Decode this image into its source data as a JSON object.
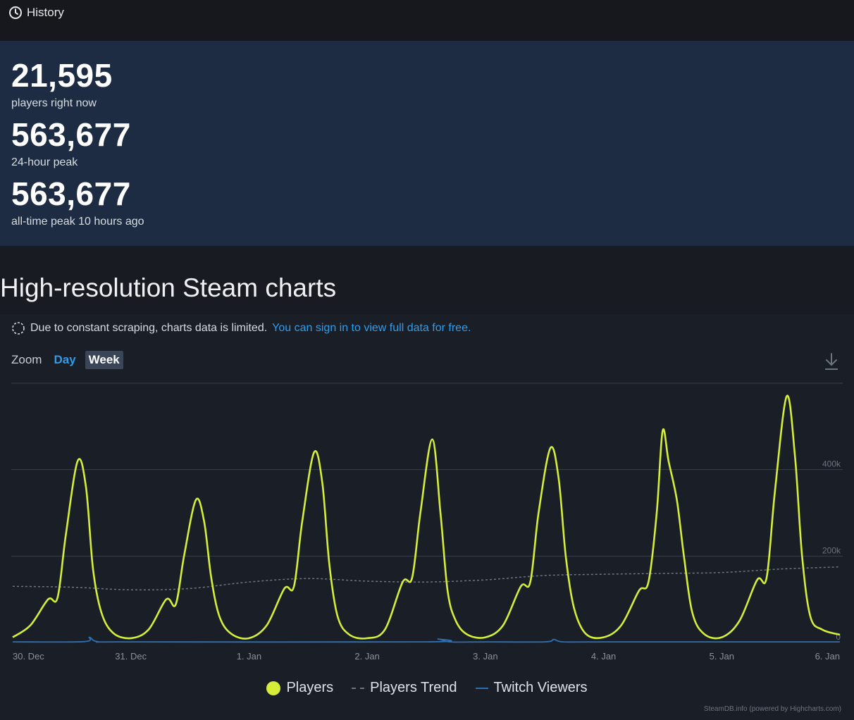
{
  "header": {
    "tab_label": "History"
  },
  "stats": {
    "current": {
      "value": "21,595",
      "label": "players right now"
    },
    "peak_24h": {
      "value": "563,677",
      "label": "24-hour peak"
    },
    "all_time": {
      "value": "563,677",
      "label": "all-time peak 10 hours ago"
    }
  },
  "section": {
    "title": "High-resolution Steam charts"
  },
  "notice": {
    "text": "Due to constant scraping, charts data is limited.",
    "link": "You can sign in to view full data for free."
  },
  "zoom": {
    "label": "Zoom",
    "options": [
      "Day",
      "Week"
    ],
    "selected": "Week"
  },
  "legend": {
    "players": "Players",
    "trend": "Players Trend",
    "twitch": "Twitch Viewers"
  },
  "credits": "SteamDB.info (powered by Highcharts.com)",
  "colors": {
    "players": "#d4ee3a",
    "trend": "#6e7580",
    "twitch": "#2e6fb0",
    "link": "#2f9ded"
  },
  "chart_data": {
    "type": "line",
    "x_tick_labels": [
      "30. Dec",
      "31. Dec",
      "1. Jan",
      "2. Jan",
      "3. Jan",
      "4. Jan",
      "5. Jan",
      "6. Jan"
    ],
    "y_tick_labels": [
      "0",
      "200k",
      "400k"
    ],
    "ylim": [
      0,
      600000
    ],
    "grid": true,
    "legend_position": "bottom",
    "series": [
      {
        "name": "Players",
        "x_days": [
          0,
          0.15,
          0.3,
          0.38,
          0.45,
          0.55,
          0.62,
          0.68,
          0.75,
          0.85,
          1.0,
          1.15,
          1.3,
          1.38,
          1.45,
          1.55,
          1.62,
          1.68,
          1.75,
          1.85,
          2.0,
          2.15,
          2.3,
          2.38,
          2.45,
          2.55,
          2.62,
          2.68,
          2.75,
          2.85,
          3.0,
          3.15,
          3.3,
          3.38,
          3.45,
          3.55,
          3.62,
          3.68,
          3.75,
          3.85,
          4.0,
          4.15,
          4.3,
          4.38,
          4.45,
          4.55,
          4.62,
          4.68,
          4.75,
          4.85,
          5.0,
          5.15,
          5.3,
          5.38,
          5.45,
          5.5,
          5.55,
          5.62,
          5.68,
          5.75,
          5.85,
          6.0,
          6.15,
          6.3,
          6.38,
          6.45,
          6.55,
          6.62,
          6.68,
          6.75,
          6.85,
          7.0
        ],
        "values": [
          12000,
          40000,
          100000,
          104000,
          250000,
          420000,
          360000,
          170000,
          70000,
          22000,
          10000,
          30000,
          100000,
          88000,
          200000,
          330000,
          280000,
          150000,
          60000,
          20000,
          10000,
          40000,
          125000,
          130000,
          280000,
          440000,
          370000,
          180000,
          60000,
          18000,
          10000,
          30000,
          140000,
          150000,
          300000,
          470000,
          300000,
          120000,
          50000,
          18000,
          12000,
          40000,
          130000,
          140000,
          300000,
          450000,
          380000,
          200000,
          80000,
          20000,
          12000,
          40000,
          120000,
          140000,
          300000,
          490000,
          420000,
          330000,
          200000,
          70000,
          20000,
          12000,
          50000,
          145000,
          150000,
          350000,
          570000,
          430000,
          200000,
          60000,
          30000,
          18000
        ]
      },
      {
        "name": "Players Trend",
        "x_days": [
          0,
          0.5,
          1.0,
          1.5,
          2.0,
          2.5,
          3.0,
          3.5,
          4.0,
          4.5,
          5.0,
          5.5,
          6.0,
          6.5,
          7.0
        ],
        "values": [
          130000,
          128000,
          122000,
          125000,
          140000,
          148000,
          142000,
          140000,
          145000,
          155000,
          158000,
          160000,
          162000,
          170000,
          175000
        ]
      },
      {
        "name": "Twitch Viewers",
        "x_days": [
          0,
          0.6,
          0.65,
          0.72,
          1.0,
          3.5,
          3.6,
          3.7,
          4.0,
          4.5,
          4.58,
          4.66,
          5.0,
          7.0
        ],
        "values": [
          1500,
          2000,
          12000,
          2000,
          1500,
          1500,
          8000,
          1500,
          1500,
          1500,
          7000,
          1500,
          1500,
          1500
        ]
      }
    ]
  }
}
